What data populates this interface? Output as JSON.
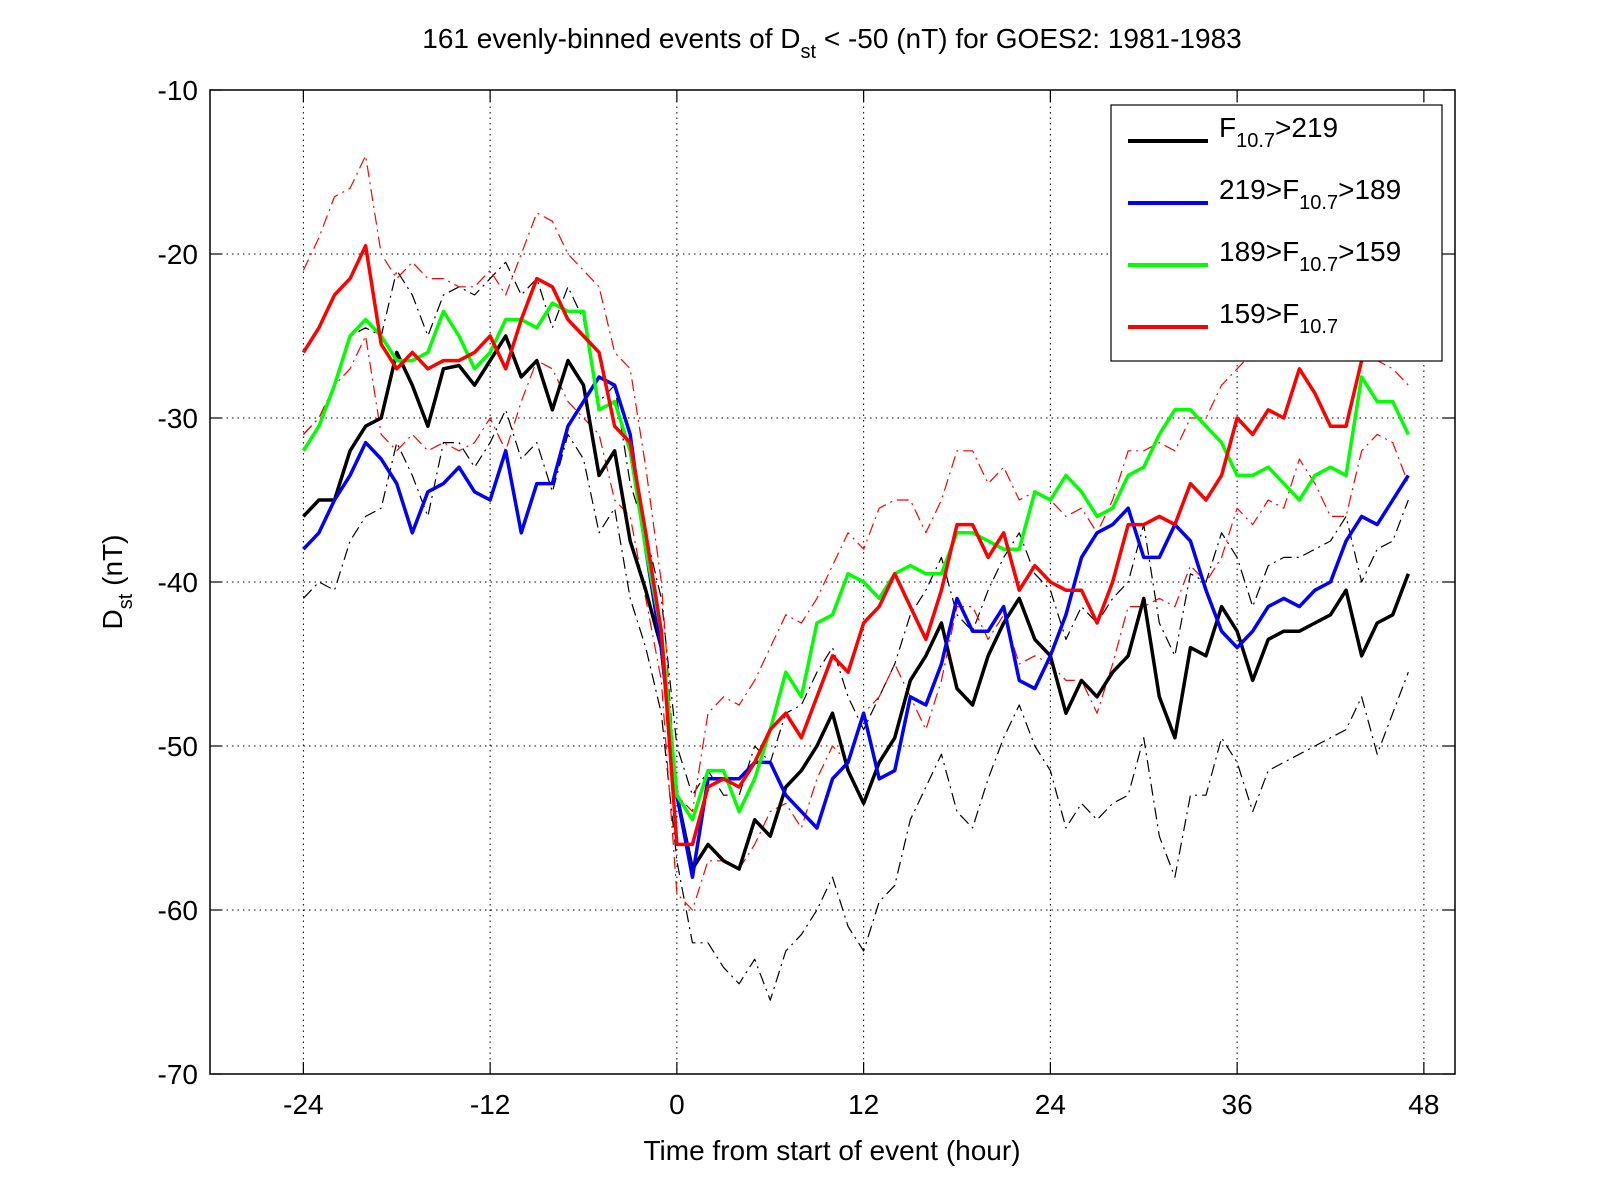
{
  "chart_data": {
    "type": "line",
    "title": [
      "161 evenly-binned events of D",
      "st",
      " < -50 (nT) for GOES2: 1981-1983"
    ],
    "xlabel": "Time from start of event (hour)",
    "ylabel": [
      "D",
      "st",
      " (nT)"
    ],
    "xlim": [
      -30,
      50
    ],
    "ylim": [
      -70,
      -10
    ],
    "xticks": [
      -24,
      -12,
      0,
      12,
      24,
      36,
      48
    ],
    "yticks": [
      -70,
      -60,
      -50,
      -40,
      -30,
      -20,
      -10
    ],
    "grid": true,
    "legend": "upper right",
    "x": [
      -24,
      -23,
      -22,
      -21,
      -20,
      -19,
      -18,
      -17,
      -16,
      -15,
      -14,
      -13,
      -12,
      -11,
      -10,
      -9,
      -8,
      -7,
      -6,
      -5,
      -4,
      -3,
      -2,
      -1,
      0,
      1,
      2,
      3,
      4,
      5,
      6,
      7,
      8,
      9,
      10,
      11,
      12,
      13,
      14,
      15,
      16,
      17,
      18,
      19,
      20,
      21,
      22,
      23,
      24,
      25,
      26,
      27,
      28,
      29,
      30,
      31,
      32,
      33,
      34,
      35,
      36,
      37,
      38,
      39,
      40,
      41,
      42,
      43,
      44,
      45,
      46,
      47
    ],
    "series": [
      {
        "color": "#000000",
        "style": "dashdot",
        "values": [
          -31,
          -30,
          -28,
          -25,
          -24.5,
          -25,
          -21,
          -22.5,
          -25,
          -22.5,
          -22,
          -22.5,
          -21.5,
          -20.5,
          -22.5,
          -21.5,
          -24.5,
          -22,
          -24,
          -29,
          -28,
          -34,
          -37,
          -41,
          -50,
          -53,
          -51.5,
          -53,
          -53,
          -50,
          -51,
          -48,
          -47.5,
          -45.5,
          -44,
          -47,
          -49,
          -47,
          -45,
          -42,
          -40.5,
          -38.5,
          -42,
          -43,
          -40.5,
          -38.5,
          -37,
          -39.5,
          -40.5,
          -43.5,
          -41.5,
          -42.5,
          -41,
          -40,
          -36.5,
          -42.5,
          -44.5,
          -39.5,
          -40,
          -37,
          -38.5,
          -41.5,
          -39,
          -38.5,
          -38.5,
          -38,
          -37.5,
          -36,
          -40,
          -38,
          -37.5,
          -35
        ]
      },
      {
        "color": "#000000",
        "style": "dashdot",
        "values": [
          -41,
          -40,
          -40.5,
          -37.5,
          -36,
          -35.5,
          -31.5,
          -33.5,
          -36,
          -31.5,
          -31.5,
          -33,
          -31.5,
          -29.5,
          -32.5,
          -31.5,
          -34.5,
          -31,
          -32.5,
          -37,
          -35.5,
          -41,
          -44,
          -48,
          -57,
          -62,
          -62,
          -63.5,
          -64.5,
          -63,
          -65.5,
          -62.5,
          -61.5,
          -60,
          -58,
          -61,
          -62.5,
          -59.5,
          -58.5,
          -54.5,
          -52.5,
          -50.5,
          -54,
          -55,
          -52,
          -49.5,
          -47.5,
          -50,
          -51.5,
          -55,
          -53.5,
          -54.5,
          -53.5,
          -53,
          -49.5,
          -55.5,
          -58,
          -53,
          -53,
          -49.5,
          -51,
          -54,
          -51.5,
          -51,
          -50.5,
          -50,
          -49.5,
          -49,
          -47,
          -50.5,
          -48,
          -45.5
        ]
      },
      {
        "color": "#ff0000",
        "style": "dashdot",
        "values": [
          -21,
          -19,
          -16.5,
          -16,
          -14,
          -20,
          -21.5,
          -20.5,
          -21.5,
          -21.5,
          -22,
          -22,
          -21,
          -22.5,
          -20,
          -17.5,
          -18,
          -20,
          -21,
          -22,
          -26,
          -27,
          -33,
          -40,
          -53,
          -54,
          -48,
          -47,
          -47.5,
          -46,
          -44,
          -42,
          -42.5,
          -41,
          -39,
          -37,
          -38,
          -35.5,
          -35,
          -35,
          -37,
          -35,
          -32,
          -32,
          -34,
          -33,
          -35,
          -34.5,
          -35,
          -36,
          -35.5,
          -37,
          -35,
          -32,
          -32,
          -31.5,
          -32,
          -30,
          -30,
          -28,
          -27,
          -26,
          -26,
          -24,
          -25,
          -26.5,
          -26,
          -26,
          -26,
          -26.5,
          -27,
          -28
        ]
      },
      {
        "color": "#ff0000",
        "style": "dashdot",
        "values": [
          -31,
          -30,
          -28,
          -27,
          -25,
          -31,
          -32,
          -31,
          -32,
          -31.5,
          -32,
          -31.5,
          -30,
          -32,
          -29,
          -26.5,
          -27,
          -29,
          -30,
          -31,
          -35,
          -36,
          -41,
          -46,
          -59,
          -60,
          -57,
          -57,
          -57.5,
          -56,
          -54,
          -53.5,
          -55,
          -52,
          -50,
          -51,
          -48,
          -47,
          -45,
          -47,
          -49,
          -46,
          -41.5,
          -41.5,
          -43.5,
          -42,
          -45,
          -44.5,
          -45,
          -46,
          -46,
          -48,
          -45,
          -41.5,
          -41.5,
          -41,
          -41.5,
          -39,
          -40,
          -38.5,
          -35.5,
          -36.5,
          -35,
          -35.5,
          -32.5,
          -34,
          -36,
          -36,
          -32,
          -31,
          -31.5,
          -34
        ]
      },
      {
        "name": [
          "F",
          "10.7",
          ">219"
        ],
        "color": "#000000",
        "style": "solid",
        "values": [
          -36,
          -35,
          -35,
          -32,
          -30.5,
          -30,
          -26,
          -28,
          -30.5,
          -27,
          -26.8,
          -28,
          -26.5,
          -25,
          -27.5,
          -26.5,
          -29.5,
          -26.5,
          -28,
          -33.5,
          -32,
          -37.5,
          -40.5,
          -44,
          -53,
          -57.5,
          -56,
          -57,
          -57.5,
          -54.5,
          -55.5,
          -52.5,
          -51.5,
          -50,
          -48,
          -51.5,
          -53.5,
          -51,
          -49.5,
          -46,
          -44.5,
          -42.5,
          -46.5,
          -47.5,
          -44.5,
          -42.5,
          -41,
          -43.5,
          -44.5,
          -48,
          -46,
          -47,
          -45.5,
          -44.5,
          -41,
          -47,
          -49.5,
          -44,
          -44.5,
          -41.5,
          -43,
          -46,
          -43.5,
          -43,
          -43,
          -42.5,
          -42,
          -40.5,
          -44.5,
          -42.5,
          -42,
          -39.5
        ]
      },
      {
        "name": [
          "219>F",
          "10.7",
          ">189"
        ],
        "color": "#0000ff",
        "style": "solid",
        "values": [
          -38,
          -37,
          -35,
          -33.5,
          -31.5,
          -32.5,
          -34,
          -37,
          -34.5,
          -34,
          -33,
          -34.5,
          -35,
          -32,
          -37,
          -34,
          -34,
          -30.5,
          -29,
          -27.5,
          -28,
          -31,
          -38,
          -44,
          -53,
          -58,
          -52,
          -52,
          -52,
          -51,
          -51,
          -53,
          -54,
          -55,
          -52,
          -51,
          -48,
          -52,
          -51.5,
          -47,
          -47.5,
          -45,
          -41,
          -43,
          -43,
          -41.5,
          -46,
          -46.5,
          -44.5,
          -42,
          -38.5,
          -37,
          -36.5,
          -35.5,
          -38.5,
          -38.5,
          -36.5,
          -37.5,
          -40.5,
          -43,
          -44,
          -43,
          -41.5,
          -41,
          -41.5,
          -40.5,
          -40,
          -37.5,
          -36,
          -36.5,
          -35,
          -33.5
        ]
      },
      {
        "name": [
          "189>F",
          "10.7",
          ">159"
        ],
        "color": "#00ff00",
        "style": "solid",
        "values": [
          -32,
          -30.5,
          -28,
          -25,
          -24,
          -25,
          -26.5,
          -26.5,
          -26,
          -23.5,
          -25,
          -27,
          -26,
          -24,
          -24,
          -24.5,
          -23,
          -23.5,
          -23.5,
          -29.5,
          -29,
          -32,
          -38,
          -43,
          -53,
          -54.5,
          -51.5,
          -51.5,
          -54,
          -52,
          -49,
          -45.5,
          -47,
          -42.5,
          -42,
          -39.5,
          -40,
          -41,
          -39.5,
          -39,
          -39.5,
          -39.5,
          -37,
          -37,
          -37.5,
          -38,
          -38,
          -34.5,
          -35,
          -33.5,
          -34.5,
          -36,
          -35.5,
          -33.5,
          -33,
          -31,
          -29.5,
          -29.5,
          -30.5,
          -31.5,
          -33.5,
          -33.5,
          -33,
          -34,
          -35,
          -33.5,
          -33,
          -33.5,
          -27.5,
          -29,
          -29,
          -31
        ]
      },
      {
        "name": [
          "159>F",
          "10.7"
        ],
        "color": "#ff0000",
        "style": "solid",
        "values": [
          -26,
          -24.5,
          -22.5,
          -21.5,
          -19.5,
          -25.5,
          -27,
          -26,
          -27,
          -26.5,
          -26.5,
          -26,
          -25,
          -27,
          -24,
          -21.5,
          -22,
          -24,
          -25,
          -26,
          -30.5,
          -31.5,
          -37,
          -43,
          -56,
          -56,
          -52.5,
          -52,
          -52.5,
          -51,
          -49,
          -48,
          -49.5,
          -47,
          -44.5,
          -45.5,
          -42.5,
          -41.5,
          -39.5,
          -41.5,
          -43.5,
          -40.5,
          -36.5,
          -36.5,
          -38.5,
          -37,
          -40.5,
          -39,
          -40,
          -40.5,
          -40.5,
          -42.5,
          -40,
          -36.5,
          -36.5,
          -36,
          -36.5,
          -34,
          -35,
          -33.5,
          -30,
          -31,
          -29.5,
          -30,
          -27,
          -28.5,
          -30.5,
          -30.5,
          -26.5,
          -25,
          -24.5,
          -25
        ]
      }
    ]
  }
}
